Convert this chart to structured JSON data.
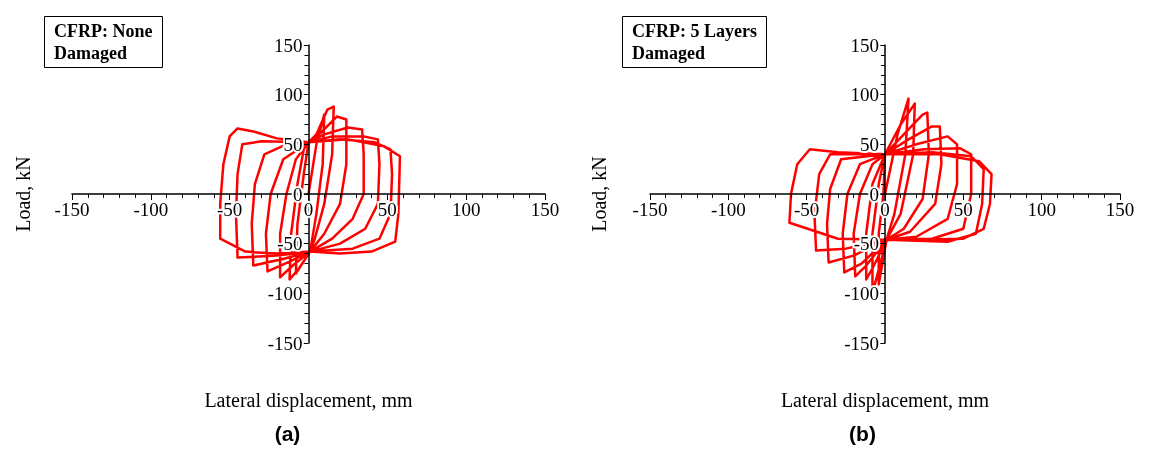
{
  "chart_data": [
    {
      "type": "line",
      "title": "(a)",
      "xlabel": "Lateral displacement, mm",
      "ylabel": "Load, kN",
      "annotations": [
        "CFRP: None\nDamaged"
      ],
      "xlim": [
        -150,
        150
      ],
      "xticks": [
        -150,
        -100,
        -50,
        0,
        50,
        100,
        150
      ],
      "ylim": [
        -150,
        150
      ],
      "yticks": [
        -150,
        -100,
        -50,
        0,
        50,
        100,
        150
      ],
      "grid": false,
      "marker": "none",
      "series": [
        {
          "color": "#ff0000",
          "x": [
            0,
            5,
            10,
            9,
            5,
            1,
            -4,
            -8,
            -7,
            -3,
            0,
            5,
            12,
            16,
            15,
            10,
            4,
            1,
            -6,
            -12,
            -11,
            -7,
            -3,
            0,
            8,
            18,
            24,
            24,
            20,
            10,
            1,
            -10,
            -18,
            -18,
            -14,
            -8,
            0,
            10,
            25,
            34,
            35,
            35,
            28,
            15,
            1,
            -12,
            -26,
            -27,
            -24,
            -16,
            0,
            15,
            35,
            44,
            45,
            44,
            36,
            20,
            1,
            -15,
            -35,
            -36,
            -34,
            -28,
            -14,
            0,
            20,
            42,
            52,
            53,
            52,
            45,
            28,
            1,
            -20,
            -45,
            -46,
            -45,
            -42,
            -30,
            0,
            25,
            48,
            58,
            57,
            55,
            40,
            20,
            1,
            -20,
            -40,
            -56,
            -56,
            -54,
            -50,
            -45,
            -35,
            -20,
            0
          ],
          "values": [
            0,
            50,
            80,
            30,
            -20,
            -58,
            -70,
            -80,
            -30,
            20,
            52,
            60,
            85,
            88,
            40,
            -10,
            -45,
            -58,
            -75,
            -86,
            -40,
            10,
            45,
            52,
            62,
            78,
            75,
            30,
            -10,
            -40,
            -58,
            -72,
            -84,
            -40,
            0,
            35,
            52,
            60,
            67,
            65,
            40,
            0,
            -25,
            -45,
            -58,
            -68,
            -78,
            -40,
            0,
            35,
            52,
            58,
            58,
            55,
            30,
            -10,
            -35,
            -50,
            -58,
            -65,
            -72,
            -30,
            10,
            40,
            50,
            52,
            55,
            52,
            45,
            20,
            -20,
            -45,
            -55,
            -58,
            -62,
            -64,
            -20,
            20,
            50,
            53,
            52,
            55,
            48,
            38,
            -20,
            -48,
            -58,
            -60,
            -58,
            -60,
            -58,
            -45,
            -10,
            30,
            58,
            66,
            63,
            56,
            52
          ]
        }
      ]
    },
    {
      "type": "line",
      "title": "(b)",
      "xlabel": "Lateral displacement, mm",
      "ylabel": "Load, kN",
      "annotations": [
        "CFRP: 5 Layers\nDamaged"
      ],
      "xlim": [
        -150,
        150
      ],
      "xticks": [
        -150,
        -100,
        -50,
        0,
        50,
        100,
        150
      ],
      "ylim": [
        -150,
        150
      ],
      "yticks": [
        -150,
        -100,
        -50,
        0,
        50,
        100,
        150
      ],
      "grid": false,
      "marker": "none",
      "series": [
        {
          "color": "#ff0000",
          "x": [
            0,
            8,
            15,
            13,
            6,
            1,
            -4,
            -4,
            -1,
            0,
            10,
            19,
            18,
            10,
            1,
            -8,
            -8,
            -4,
            0,
            12,
            24,
            27,
            28,
            24,
            12,
            1,
            -8,
            -12,
            -12,
            -8,
            0,
            15,
            30,
            35,
            36,
            32,
            16,
            1,
            -12,
            -19,
            -20,
            -16,
            -8,
            0,
            20,
            40,
            46,
            46,
            40,
            20,
            1,
            -15,
            -26,
            -27,
            -24,
            -16,
            0,
            25,
            48,
            55,
            55,
            50,
            30,
            1,
            -20,
            -36,
            -37,
            -35,
            -28,
            0,
            30,
            55,
            63,
            62,
            58,
            40,
            1,
            -25,
            -44,
            -45,
            -42,
            -35,
            0,
            35,
            60,
            68,
            67,
            63,
            50,
            20,
            1,
            -30,
            -61,
            -60,
            -56,
            -48,
            -30,
            0
          ],
          "values": [
            0,
            60,
            96,
            40,
            -20,
            -46,
            -91,
            -40,
            0,
            40,
            70,
            91,
            40,
            -20,
            -46,
            -100,
            -40,
            10,
            40,
            60,
            80,
            82,
            40,
            -5,
            -35,
            -46,
            -75,
            -86,
            -40,
            10,
            40,
            55,
            68,
            68,
            30,
            -10,
            -38,
            -46,
            -72,
            -83,
            -40,
            0,
            30,
            40,
            50,
            58,
            50,
            10,
            -25,
            -43,
            -46,
            -70,
            -79,
            -40,
            0,
            30,
            40,
            45,
            46,
            40,
            0,
            -35,
            -45,
            -46,
            -62,
            -69,
            -30,
            5,
            35,
            40,
            42,
            38,
            25,
            -10,
            -40,
            -48,
            -46,
            -55,
            -57,
            -20,
            20,
            40,
            40,
            40,
            33,
            20,
            -10,
            -35,
            -45,
            -46,
            -46,
            -45,
            -29,
            0,
            30,
            45,
            42,
            40
          ]
        }
      ]
    }
  ]
}
